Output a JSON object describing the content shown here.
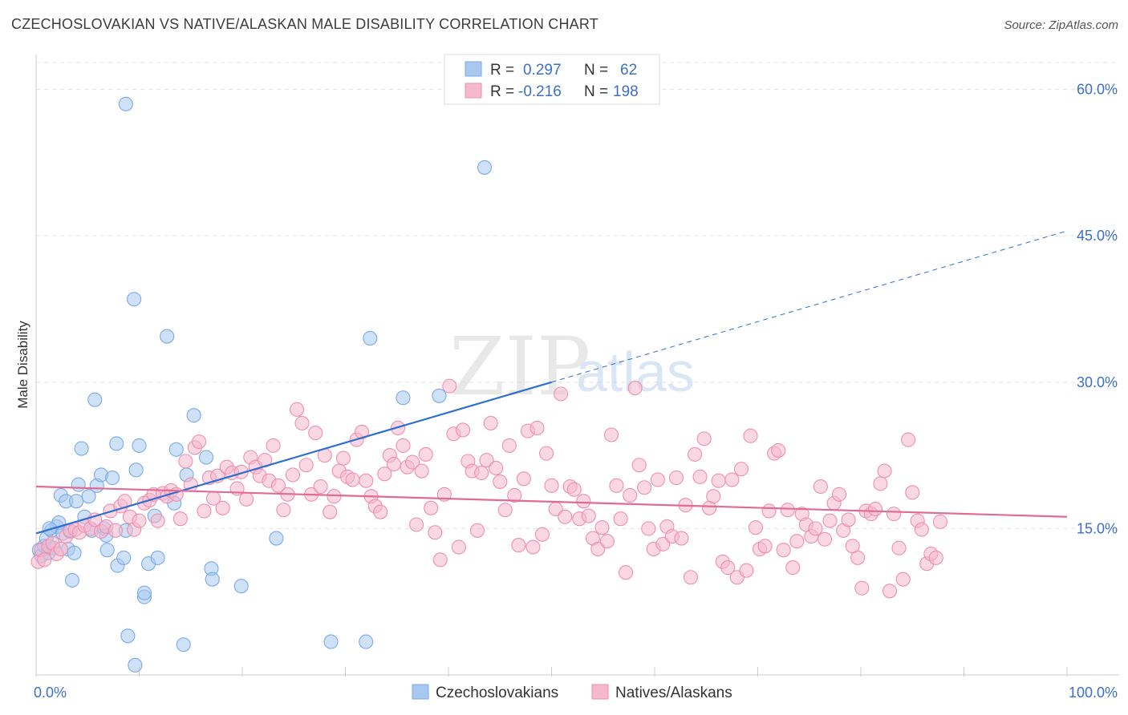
{
  "header": {
    "title": "CZECHOSLOVAKIAN VS NATIVE/ALASKAN MALE DISABILITY CORRELATION CHART",
    "source": "Source: ZipAtlas.com"
  },
  "watermark": {
    "zip": "ZIP",
    "atlas": "atlas"
  },
  "legend": {
    "rows": [
      {
        "r_label": "R =",
        "r_value": "0.297",
        "n_label": "N =",
        "n_value": "62",
        "color": "#a8c8f0"
      },
      {
        "r_label": "R =",
        "r_value": "-0.216",
        "n_label": "N =",
        "n_value": "198",
        "color": "#f5b8cc"
      }
    ]
  },
  "bottom_legend": [
    {
      "label": "Czechoslovakians",
      "color": "#a8c8f0"
    },
    {
      "label": "Natives/Alaskans",
      "color": "#f5b8cc"
    }
  ],
  "chart_data": {
    "type": "scatter",
    "ylabel": "Male Disability",
    "xlim": [
      0,
      100
    ],
    "ylim": [
      0,
      63
    ],
    "x_tick_labels": [
      "0.0%",
      "100.0%"
    ],
    "y_ticks": [
      15,
      30,
      45,
      60
    ],
    "y_tick_labels": [
      "15.0%",
      "30.0%",
      "45.0%",
      "60.0%"
    ],
    "grid": true,
    "series": [
      {
        "name": "Czechoslovakians",
        "color": "#7aaae6",
        "fill": "#a8c8f0",
        "trend": {
          "x0": 0,
          "y0": 14.5,
          "x1": 50,
          "y1": 30.0,
          "dash_to_x": 100,
          "dash_to_y": 45.5,
          "color": "#2f6fcf"
        },
        "points": [
          [
            0.3,
            12.8
          ],
          [
            0.5,
            12.2
          ],
          [
            0.8,
            13.2
          ],
          [
            1.0,
            14.0
          ],
          [
            1.2,
            12.5
          ],
          [
            1.5,
            14.8
          ],
          [
            1.7,
            13.0
          ],
          [
            2.0,
            15.2
          ],
          [
            2.2,
            15.6
          ],
          [
            2.4,
            18.4
          ],
          [
            2.6,
            14.5
          ],
          [
            2.9,
            17.8
          ],
          [
            3.1,
            12.9
          ],
          [
            3.3,
            14.7
          ],
          [
            3.5,
            9.7
          ],
          [
            3.7,
            12.5
          ],
          [
            3.9,
            17.8
          ],
          [
            4.1,
            19.5
          ],
          [
            4.4,
            23.2
          ],
          [
            4.7,
            16.2
          ],
          [
            5.1,
            18.3
          ],
          [
            5.4,
            14.8
          ],
          [
            5.7,
            28.2
          ],
          [
            5.9,
            19.4
          ],
          [
            6.3,
            20.5
          ],
          [
            6.6,
            15.0
          ],
          [
            6.8,
            14.3
          ],
          [
            6.9,
            12.8
          ],
          [
            7.4,
            20.2
          ],
          [
            7.8,
            23.7
          ],
          [
            7.9,
            11.2
          ],
          [
            8.5,
            12.0
          ],
          [
            8.7,
            14.8
          ],
          [
            8.7,
            58.5
          ],
          [
            8.9,
            4.0
          ],
          [
            9.5,
            38.5
          ],
          [
            9.7,
            21.0
          ],
          [
            10.0,
            23.5
          ],
          [
            10.5,
            8.0
          ],
          [
            10.5,
            8.4
          ],
          [
            10.9,
            11.4
          ],
          [
            11.5,
            16.3
          ],
          [
            11.8,
            12.0
          ],
          [
            12.7,
            34.7
          ],
          [
            13.4,
            17.6
          ],
          [
            13.6,
            23.1
          ],
          [
            14.3,
            3.1
          ],
          [
            14.6,
            20.5
          ],
          [
            15.3,
            26.6
          ],
          [
            16.5,
            22.3
          ],
          [
            17.0,
            10.9
          ],
          [
            17.1,
            9.8
          ],
          [
            19.9,
            9.1
          ],
          [
            23.3,
            14.0
          ],
          [
            28.6,
            3.4
          ],
          [
            32.0,
            3.4
          ],
          [
            32.4,
            34.5
          ],
          [
            35.6,
            28.4
          ],
          [
            39.1,
            28.6
          ],
          [
            43.5,
            52.0
          ],
          [
            9.6,
            1.0
          ],
          [
            1.3,
            15.0
          ]
        ]
      },
      {
        "name": "Natives/Alaskans",
        "color": "#ee8fb0",
        "fill": "#f5b8cc",
        "trend": {
          "x0": 0,
          "y0": 19.3,
          "x1": 100,
          "y1": 16.2,
          "color": "#e06b96"
        },
        "points": [
          [
            0.2,
            11.6
          ],
          [
            0.5,
            12.8
          ],
          [
            0.8,
            11.8
          ],
          [
            1.2,
            13.2
          ],
          [
            1.6,
            13.5
          ],
          [
            2.0,
            12.4
          ],
          [
            2.4,
            12.9
          ],
          [
            2.9,
            14.2
          ],
          [
            3.3,
            14.8
          ],
          [
            3.8,
            14.9
          ],
          [
            4.2,
            14.6
          ],
          [
            4.7,
            15.3
          ],
          [
            5.3,
            15.0
          ],
          [
            5.7,
            15.9
          ],
          [
            6.3,
            14.7
          ],
          [
            6.8,
            15.2
          ],
          [
            7.2,
            16.8
          ],
          [
            7.7,
            14.8
          ],
          [
            8.2,
            17.3
          ],
          [
            8.6,
            17.8
          ],
          [
            9.1,
            16.2
          ],
          [
            9.5,
            14.9
          ],
          [
            10.0,
            15.8
          ],
          [
            10.5,
            17.6
          ],
          [
            11.0,
            17.9
          ],
          [
            11.4,
            18.5
          ],
          [
            11.8,
            15.8
          ],
          [
            12.3,
            18.6
          ],
          [
            12.7,
            18.3
          ],
          [
            13.1,
            18.9
          ],
          [
            13.6,
            18.5
          ],
          [
            14.0,
            16.0
          ],
          [
            14.5,
            21.9
          ],
          [
            15.0,
            19.5
          ],
          [
            15.4,
            23.3
          ],
          [
            15.8,
            23.9
          ],
          [
            16.3,
            16.8
          ],
          [
            16.8,
            20.2
          ],
          [
            17.2,
            18.1
          ],
          [
            17.6,
            20.4
          ],
          [
            18.1,
            17.1
          ],
          [
            18.5,
            21.3
          ],
          [
            19.0,
            20.7
          ],
          [
            19.5,
            19.1
          ],
          [
            19.9,
            20.8
          ],
          [
            20.4,
            18.0
          ],
          [
            20.8,
            22.3
          ],
          [
            21.3,
            21.3
          ],
          [
            21.7,
            20.4
          ],
          [
            22.2,
            22.0
          ],
          [
            22.6,
            19.9
          ],
          [
            23.0,
            23.5
          ],
          [
            23.5,
            19.4
          ],
          [
            24.0,
            16.9
          ],
          [
            24.4,
            18.5
          ],
          [
            24.9,
            20.5
          ],
          [
            25.3,
            27.2
          ],
          [
            25.8,
            25.8
          ],
          [
            26.2,
            21.5
          ],
          [
            26.7,
            18.5
          ],
          [
            27.1,
            24.8
          ],
          [
            27.6,
            19.3
          ],
          [
            28.0,
            22.5
          ],
          [
            28.5,
            16.7
          ],
          [
            28.9,
            18.3
          ],
          [
            29.4,
            20.9
          ],
          [
            29.8,
            22.2
          ],
          [
            30.2,
            20.3
          ],
          [
            30.7,
            20.0
          ],
          [
            31.1,
            24.1
          ],
          [
            31.6,
            24.9
          ],
          [
            32.0,
            19.9
          ],
          [
            32.5,
            18.3
          ],
          [
            32.9,
            17.3
          ],
          [
            33.4,
            16.7
          ],
          [
            33.8,
            20.6
          ],
          [
            34.3,
            22.5
          ],
          [
            34.7,
            21.6
          ],
          [
            35.1,
            25.3
          ],
          [
            35.6,
            23.5
          ],
          [
            36.0,
            21.3
          ],
          [
            36.5,
            21.8
          ],
          [
            36.9,
            15.4
          ],
          [
            37.4,
            20.9
          ],
          [
            37.8,
            22.6
          ],
          [
            38.3,
            17.1
          ],
          [
            38.7,
            14.6
          ],
          [
            39.2,
            11.8
          ],
          [
            39.6,
            18.5
          ],
          [
            40.1,
            29.6
          ],
          [
            40.5,
            24.7
          ],
          [
            41.0,
            13.1
          ],
          [
            41.4,
            25.1
          ],
          [
            41.9,
            21.9
          ],
          [
            42.3,
            20.9
          ],
          [
            42.8,
            14.8
          ],
          [
            43.2,
            20.7
          ],
          [
            43.7,
            22.0
          ],
          [
            44.1,
            25.8
          ],
          [
            44.6,
            21.2
          ],
          [
            45.0,
            19.8
          ],
          [
            45.5,
            16.9
          ],
          [
            45.9,
            23.5
          ],
          [
            46.4,
            18.4
          ],
          [
            46.8,
            13.3
          ],
          [
            47.3,
            20.1
          ],
          [
            47.7,
            25.0
          ],
          [
            48.2,
            13.1
          ],
          [
            48.6,
            25.3
          ],
          [
            49.1,
            14.4
          ],
          [
            49.5,
            22.7
          ],
          [
            50.0,
            19.4
          ],
          [
            50.4,
            17.0
          ],
          [
            50.9,
            28.8
          ],
          [
            51.3,
            16.2
          ],
          [
            51.8,
            19.3
          ],
          [
            52.2,
            19.0
          ],
          [
            52.7,
            16.0
          ],
          [
            53.1,
            17.8
          ],
          [
            53.6,
            16.3
          ],
          [
            54.0,
            14.0
          ],
          [
            54.5,
            12.9
          ],
          [
            54.9,
            15.1
          ],
          [
            55.4,
            13.7
          ],
          [
            55.8,
            24.6
          ],
          [
            56.3,
            19.4
          ],
          [
            56.7,
            16.0
          ],
          [
            57.2,
            10.5
          ],
          [
            57.6,
            18.4
          ],
          [
            58.1,
            29.4
          ],
          [
            58.5,
            21.5
          ],
          [
            59.0,
            19.2
          ],
          [
            59.4,
            15.0
          ],
          [
            59.9,
            12.9
          ],
          [
            60.3,
            20.0
          ],
          [
            60.8,
            13.4
          ],
          [
            61.2,
            15.2
          ],
          [
            61.7,
            14.2
          ],
          [
            62.1,
            20.2
          ],
          [
            62.6,
            14.0
          ],
          [
            63.0,
            17.4
          ],
          [
            63.5,
            10.0
          ],
          [
            63.9,
            22.6
          ],
          [
            64.4,
            20.3
          ],
          [
            64.8,
            24.2
          ],
          [
            65.3,
            17.1
          ],
          [
            65.7,
            18.3
          ],
          [
            66.2,
            19.9
          ],
          [
            66.6,
            11.6
          ],
          [
            67.1,
            11.0
          ],
          [
            67.5,
            20.0
          ],
          [
            68.0,
            10.0
          ],
          [
            68.4,
            21.1
          ],
          [
            68.9,
            10.7
          ],
          [
            69.3,
            24.5
          ],
          [
            69.8,
            15.1
          ],
          [
            70.2,
            12.9
          ],
          [
            70.7,
            13.2
          ],
          [
            71.1,
            16.8
          ],
          [
            71.6,
            22.7
          ],
          [
            72.0,
            23.0
          ],
          [
            72.5,
            12.8
          ],
          [
            72.9,
            16.9
          ],
          [
            73.4,
            11.0
          ],
          [
            73.8,
            13.7
          ],
          [
            74.3,
            16.5
          ],
          [
            74.7,
            15.4
          ],
          [
            75.2,
            14.2
          ],
          [
            75.6,
            15.0
          ],
          [
            76.1,
            19.3
          ],
          [
            76.5,
            13.9
          ],
          [
            77.0,
            15.8
          ],
          [
            77.4,
            17.6
          ],
          [
            77.9,
            18.5
          ],
          [
            78.3,
            14.8
          ],
          [
            78.8,
            15.9
          ],
          [
            79.2,
            13.2
          ],
          [
            79.7,
            12.0
          ],
          [
            80.1,
            8.9
          ],
          [
            80.5,
            16.8
          ],
          [
            81.0,
            16.5
          ],
          [
            81.4,
            17.0
          ],
          [
            81.9,
            19.6
          ],
          [
            82.3,
            20.9
          ],
          [
            82.8,
            8.6
          ],
          [
            83.2,
            16.5
          ],
          [
            83.7,
            13.0
          ],
          [
            84.1,
            9.8
          ],
          [
            84.6,
            24.1
          ],
          [
            85.0,
            18.7
          ],
          [
            85.5,
            15.8
          ],
          [
            85.9,
            14.9
          ],
          [
            86.4,
            11.4
          ],
          [
            86.8,
            12.4
          ],
          [
            87.3,
            12.0
          ],
          [
            87.7,
            15.7
          ]
        ]
      }
    ]
  }
}
